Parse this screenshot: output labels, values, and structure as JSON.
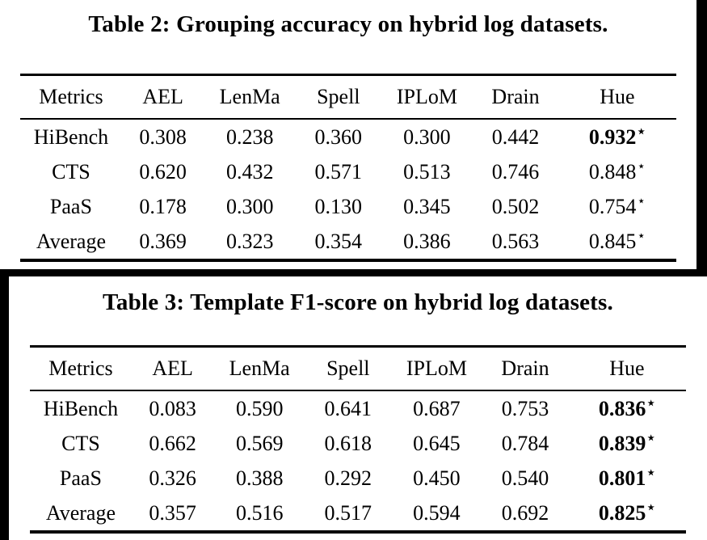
{
  "page": {
    "background_color": "#ffffff",
    "frame_color": "#000000",
    "text_color": "#000000"
  },
  "star_symbol": "⋆",
  "tables": [
    {
      "title": "Table 2: Grouping accuracy on hybrid log datasets.",
      "columns": [
        "Metrics",
        "AEL",
        "LenMa",
        "Spell",
        "IPLoM",
        "Drain",
        "Hue"
      ],
      "rows": [
        {
          "label": "HiBench",
          "cells": [
            {
              "v": "0.308"
            },
            {
              "v": "0.238"
            },
            {
              "v": "0.360"
            },
            {
              "v": "0.300"
            },
            {
              "v": "0.442"
            },
            {
              "v": "0.932",
              "star": true,
              "bold": true
            }
          ]
        },
        {
          "label": "CTS",
          "cells": [
            {
              "v": "0.620"
            },
            {
              "v": "0.432"
            },
            {
              "v": "0.571"
            },
            {
              "v": "0.513"
            },
            {
              "v": "0.746"
            },
            {
              "v": "0.848",
              "star": true,
              "bold": false
            }
          ]
        },
        {
          "label": "PaaS",
          "cells": [
            {
              "v": "0.178"
            },
            {
              "v": "0.300"
            },
            {
              "v": "0.130"
            },
            {
              "v": "0.345"
            },
            {
              "v": "0.502"
            },
            {
              "v": "0.754",
              "star": true,
              "bold": false
            }
          ]
        },
        {
          "label": "Average",
          "cells": [
            {
              "v": "0.369"
            },
            {
              "v": "0.323"
            },
            {
              "v": "0.354"
            },
            {
              "v": "0.386"
            },
            {
              "v": "0.563"
            },
            {
              "v": "0.845",
              "star": true,
              "bold": false
            }
          ]
        }
      ]
    },
    {
      "title": "Table 3: Template F1-score on hybrid log datasets.",
      "columns": [
        "Metrics",
        "AEL",
        "LenMa",
        "Spell",
        "IPLoM",
        "Drain",
        "Hue"
      ],
      "rows": [
        {
          "label": "HiBench",
          "cells": [
            {
              "v": "0.083"
            },
            {
              "v": "0.590"
            },
            {
              "v": "0.641"
            },
            {
              "v": "0.687"
            },
            {
              "v": "0.753"
            },
            {
              "v": "0.836",
              "star": true,
              "bold": true
            }
          ]
        },
        {
          "label": "CTS",
          "cells": [
            {
              "v": "0.662"
            },
            {
              "v": "0.569"
            },
            {
              "v": "0.618"
            },
            {
              "v": "0.645"
            },
            {
              "v": "0.784"
            },
            {
              "v": "0.839",
              "star": true,
              "bold": true
            }
          ]
        },
        {
          "label": "PaaS",
          "cells": [
            {
              "v": "0.326"
            },
            {
              "v": "0.388"
            },
            {
              "v": "0.292"
            },
            {
              "v": "0.450"
            },
            {
              "v": "0.540"
            },
            {
              "v": "0.801",
              "star": true,
              "bold": true
            }
          ]
        },
        {
          "label": "Average",
          "cells": [
            {
              "v": "0.357"
            },
            {
              "v": "0.516"
            },
            {
              "v": "0.517"
            },
            {
              "v": "0.594"
            },
            {
              "v": "0.692"
            },
            {
              "v": "0.825",
              "star": true,
              "bold": true
            }
          ]
        }
      ]
    }
  ]
}
